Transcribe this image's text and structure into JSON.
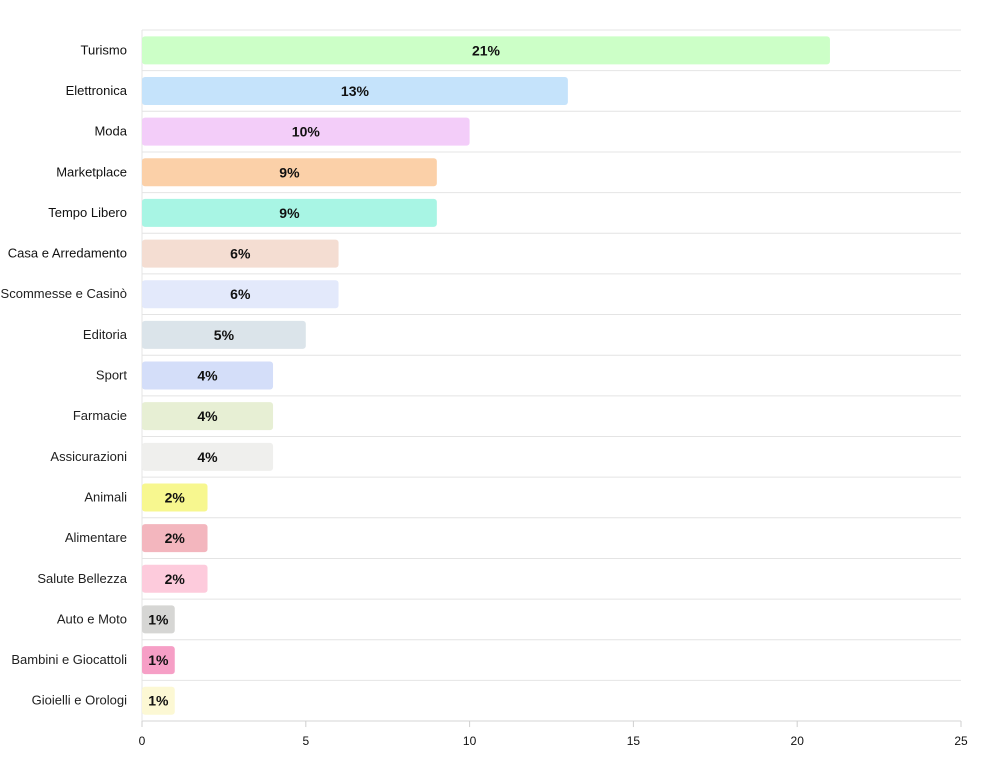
{
  "chart_data": {
    "type": "bar",
    "orientation": "horizontal",
    "categories": [
      "Turismo",
      "Elettronica",
      "Moda",
      "Marketplace",
      "Tempo Libero",
      "Casa e Arredamento",
      "Scommesse e Casinò",
      "Editoria",
      "Sport",
      "Farmacie",
      "Assicurazioni",
      "Animali",
      "Alimentare",
      "Salute Bellezza",
      "Auto e Moto",
      "Bambini e Giocattoli",
      "Gioielli e Orologi"
    ],
    "values": [
      21,
      13,
      10,
      9,
      9,
      6,
      6,
      5,
      4,
      4,
      4,
      2,
      2,
      2,
      1,
      1,
      1
    ],
    "data_labels": [
      "21%",
      "13%",
      "10%",
      "9%",
      "9%",
      "6%",
      "6%",
      "5%",
      "4%",
      "4%",
      "4%",
      "2%",
      "2%",
      "2%",
      "1%",
      "1%",
      "1%"
    ],
    "colors": [
      "#ccffc7",
      "#c5e3fb",
      "#f3cdf9",
      "#fbd0a8",
      "#a8f5e4",
      "#f4ddd2",
      "#e3e9fb",
      "#dbe4ea",
      "#d4def9",
      "#e7efd4",
      "#efefed",
      "#f7f78f",
      "#f3b6be",
      "#fdcbdc",
      "#d6d6d4",
      "#f69fc6",
      "#fcf8d4"
    ],
    "x_ticks": [
      "0",
      "5",
      "10",
      "15",
      "20",
      "25"
    ],
    "xlim": [
      0,
      25
    ],
    "grid": true,
    "title": "",
    "xlabel": "",
    "ylabel": ""
  }
}
